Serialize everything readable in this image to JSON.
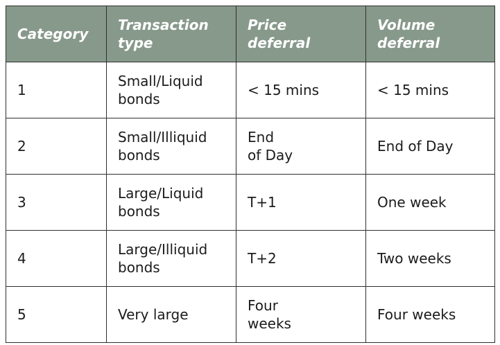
{
  "table": {
    "headers": [
      "Category",
      "Transaction\ntype",
      "Price\ndeferral",
      "Volume\ndeferral"
    ],
    "rows": [
      [
        "1",
        "Small/Liquid\nbonds",
        "< 15 mins",
        "< 15 mins"
      ],
      [
        "2",
        "Small/Illiquid\nbonds",
        "End\nof Day",
        "End of Day"
      ],
      [
        "3",
        "Large/Liquid\nbonds",
        "T+1",
        "One week"
      ],
      [
        "4",
        "Large/Illiquid\nbonds",
        "T+2",
        "Two weeks"
      ],
      [
        "5",
        "Very large",
        "Four\nweeks",
        "Four weeks"
      ]
    ]
  },
  "colors": {
    "header_background": "#87998b",
    "header_text": "#ffffff",
    "border": "#2f2f2f",
    "body_text": "#1b1b1b"
  }
}
